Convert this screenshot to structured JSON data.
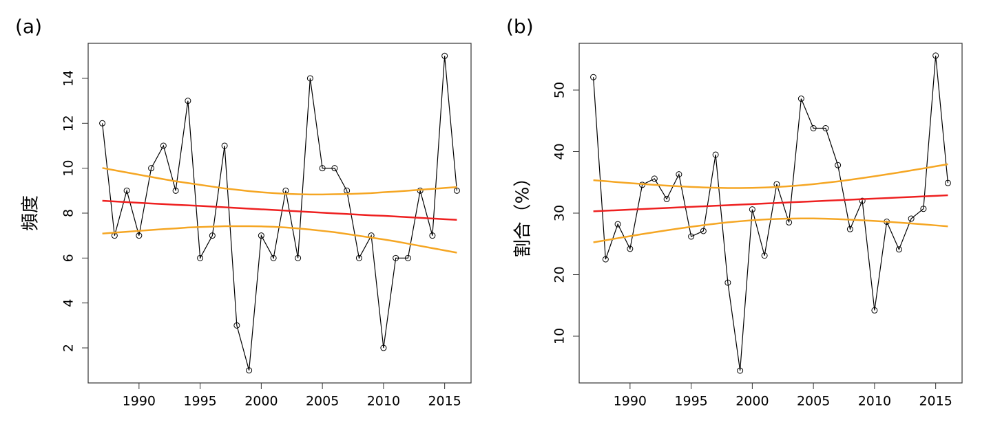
{
  "chart_data": [
    {
      "type": "line",
      "title": "(a)",
      "y_label": "頻度",
      "x": [
        1987,
        1988,
        1989,
        1990,
        1991,
        1992,
        1993,
        1994,
        1995,
        1996,
        1997,
        1998,
        1999,
        2000,
        2001,
        2002,
        2003,
        2004,
        2005,
        2006,
        2007,
        2008,
        2009,
        2010,
        2011,
        2012,
        2013,
        2014,
        2015,
        2016
      ],
      "xlim": [
        1985.84,
        2017.16
      ],
      "xticks": [
        1990,
        1995,
        2000,
        2005,
        2010,
        2015
      ],
      "ylim": [
        0.44,
        15.56
      ],
      "yticks": [
        2,
        4,
        6,
        8,
        10,
        12,
        14
      ],
      "series": [
        {
          "color": "#000000",
          "marker": "circle",
          "values": [
            12,
            7,
            9,
            7,
            10,
            11,
            9,
            13,
            6,
            7,
            11,
            3,
            1,
            7,
            6,
            9,
            6,
            14,
            10,
            10,
            9,
            6,
            7,
            2,
            6,
            6,
            9,
            7,
            15,
            9
          ]
        },
        {
          "color": "#ee2020",
          "marker": "none",
          "values": [
            8.55,
            8.52,
            8.49,
            8.46,
            8.43,
            8.4,
            8.37,
            8.35,
            8.32,
            8.29,
            8.26,
            8.23,
            8.2,
            8.17,
            8.14,
            8.11,
            8.08,
            8.05,
            8.02,
            7.99,
            7.96,
            7.93,
            7.9,
            7.88,
            7.85,
            7.82,
            7.79,
            7.76,
            7.73,
            7.7
          ]
        },
        {
          "color": "#f5a623",
          "marker": "none",
          "values": [
            10.01,
            9.91,
            9.81,
            9.71,
            9.61,
            9.51,
            9.42,
            9.34,
            9.26,
            9.18,
            9.1,
            9.04,
            8.98,
            8.93,
            8.89,
            8.86,
            8.84,
            8.83,
            8.83,
            8.84,
            8.85,
            8.87,
            8.89,
            8.93,
            8.96,
            9.0,
            9.04,
            9.08,
            9.12,
            9.16
          ]
        },
        {
          "color": "#f5a623",
          "marker": "none",
          "values": [
            7.09,
            7.13,
            7.17,
            7.21,
            7.25,
            7.29,
            7.32,
            7.36,
            7.38,
            7.4,
            7.42,
            7.42,
            7.42,
            7.41,
            7.39,
            7.36,
            7.32,
            7.27,
            7.21,
            7.15,
            7.07,
            6.99,
            6.91,
            6.83,
            6.74,
            6.64,
            6.54,
            6.44,
            6.34,
            6.24
          ]
        }
      ]
    },
    {
      "type": "line",
      "title": "(b)",
      "y_label": "割合（%）",
      "x": [
        1987,
        1988,
        1989,
        1990,
        1991,
        1992,
        1993,
        1994,
        1995,
        1996,
        1997,
        1998,
        1999,
        2000,
        2001,
        2002,
        2003,
        2004,
        2005,
        2006,
        2007,
        2008,
        2009,
        2010,
        2011,
        2012,
        2013,
        2014,
        2015,
        2016
      ],
      "xlim": [
        1985.84,
        2017.16
      ],
      "xticks": [
        1990,
        1995,
        2000,
        2005,
        2010,
        2015
      ],
      "ylim": [
        2.4,
        57.6
      ],
      "yticks": [
        10,
        20,
        30,
        40,
        50
      ],
      "series": [
        {
          "color": "#000000",
          "marker": "circle",
          "values": [
            52.1,
            22.5,
            28.2,
            24.2,
            34.6,
            35.6,
            32.3,
            36.3,
            26.2,
            27.1,
            39.5,
            18.7,
            4.4,
            30.6,
            23.1,
            34.7,
            28.5,
            48.6,
            43.8,
            43.8,
            37.8,
            27.4,
            32.0,
            14.2,
            28.6,
            24.1,
            29.1,
            30.7,
            55.6,
            34.9
          ]
        },
        {
          "color": "#ee2020",
          "marker": "none",
          "values": [
            30.3,
            30.39,
            30.48,
            30.57,
            30.66,
            30.75,
            30.84,
            30.93,
            31.02,
            31.11,
            31.2,
            31.29,
            31.38,
            31.47,
            31.56,
            31.65,
            31.74,
            31.83,
            31.92,
            32.01,
            32.09,
            32.18,
            32.27,
            32.36,
            32.45,
            32.54,
            32.63,
            32.72,
            32.81,
            32.9
          ]
        },
        {
          "color": "#f5a623",
          "marker": "none",
          "values": [
            35.35,
            35.19,
            35.03,
            34.88,
            34.73,
            34.6,
            34.47,
            34.36,
            34.26,
            34.18,
            34.12,
            34.08,
            34.08,
            34.1,
            34.16,
            34.25,
            34.37,
            34.53,
            34.71,
            34.93,
            35.16,
            35.42,
            35.7,
            35.99,
            36.3,
            36.61,
            36.94,
            37.27,
            37.61,
            37.95
          ]
        },
        {
          "color": "#f5a623",
          "marker": "none",
          "values": [
            25.25,
            25.59,
            25.93,
            26.26,
            26.59,
            26.9,
            27.21,
            27.5,
            27.78,
            28.04,
            28.28,
            28.5,
            28.68,
            28.84,
            28.96,
            29.05,
            29.11,
            29.13,
            29.13,
            29.09,
            29.02,
            28.94,
            28.84,
            28.73,
            28.6,
            28.47,
            28.32,
            28.17,
            28.01,
            27.85
          ]
        }
      ]
    }
  ]
}
